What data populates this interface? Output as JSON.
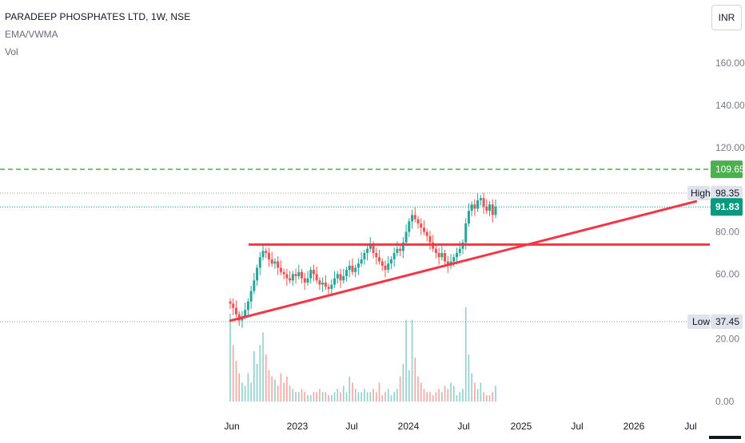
{
  "legend": {
    "title": "PARADEEP PHOSPHATES LTD, 1W, NSE",
    "indicator": "EMA/VWMA",
    "volume": "Vol"
  },
  "currency_button": "INR",
  "price_axis": {
    "ticks": [
      "160.00",
      "140.00",
      "120.00",
      "80.00",
      "60.00",
      "20.00",
      "0.00"
    ],
    "scale": [
      160,
      140,
      120,
      80,
      60
    ]
  },
  "time_axis": {
    "ticks": [
      "Jun",
      "2023",
      "Jul",
      "2024",
      "Jul",
      "2025",
      "Jul",
      "2026",
      "Jul"
    ]
  },
  "price_labels": {
    "target": "109.65",
    "high_label": "High",
    "high": "98.35",
    "current": "91.83",
    "low_label": "Low",
    "low": "37.45"
  },
  "colors": {
    "up": "#26a69a",
    "down": "#ef5350",
    "trendline": "#f23645",
    "target_line": "#4caf50",
    "label_bg": "#e0e3eb",
    "current_label": "#089981"
  },
  "chart_data": {
    "type": "candlestick",
    "symbol": "PARADEEP PHOSPHATES LTD",
    "interval": "1W",
    "exchange": "NSE",
    "currency": "INR",
    "ylim": [
      0,
      170
    ],
    "high": 98.35,
    "low": 37.45,
    "last": 91.83,
    "horizontal_levels": [
      109.65,
      74
    ],
    "trendline": {
      "from": [
        "Jun 2022",
        37.5
      ],
      "to": [
        "Jul 2026",
        95
      ]
    },
    "support_line": {
      "from": [
        "Jul 2022",
        74
      ],
      "to": [
        "Jul 2026",
        74
      ]
    },
    "close_series": [
      46,
      44,
      41,
      38,
      40,
      43,
      47,
      52,
      57,
      63,
      68,
      71,
      70,
      67,
      65,
      66,
      63,
      61,
      60,
      58,
      57,
      60,
      59,
      61,
      58,
      56,
      58,
      62,
      60,
      57,
      55,
      56,
      54,
      53,
      55,
      58,
      60,
      57,
      59,
      62,
      64,
      61,
      63,
      65,
      67,
      70,
      72,
      74,
      70,
      68,
      66,
      64,
      62,
      65,
      67,
      70,
      72,
      71,
      75,
      80,
      85,
      88,
      86,
      84,
      82,
      80,
      78,
      75,
      72,
      70,
      68,
      70,
      66,
      64,
      66,
      68,
      70,
      72,
      75,
      84,
      90,
      93,
      91,
      95,
      96,
      92,
      90,
      93,
      88,
      91.83
    ],
    "volume_series": [
      28,
      18,
      13,
      9,
      6,
      5,
      9,
      6,
      16,
      12,
      18,
      22,
      15,
      10,
      8,
      7,
      5,
      9,
      6,
      8,
      5,
      4,
      3,
      3,
      4,
      3,
      2,
      2,
      3,
      3,
      4,
      3,
      3,
      2,
      2,
      3,
      4,
      3,
      5,
      3,
      8,
      6,
      4,
      3,
      3,
      4,
      3,
      3,
      4,
      3,
      6,
      2,
      3,
      4,
      2,
      3,
      4,
      8,
      12,
      26,
      10,
      26,
      14,
      8,
      6,
      4,
      3,
      3,
      2,
      3,
      4,
      3,
      5,
      4,
      6,
      5,
      2,
      3,
      4,
      30,
      15,
      9,
      6,
      4,
      6,
      3,
      2,
      2,
      3,
      5
    ]
  }
}
